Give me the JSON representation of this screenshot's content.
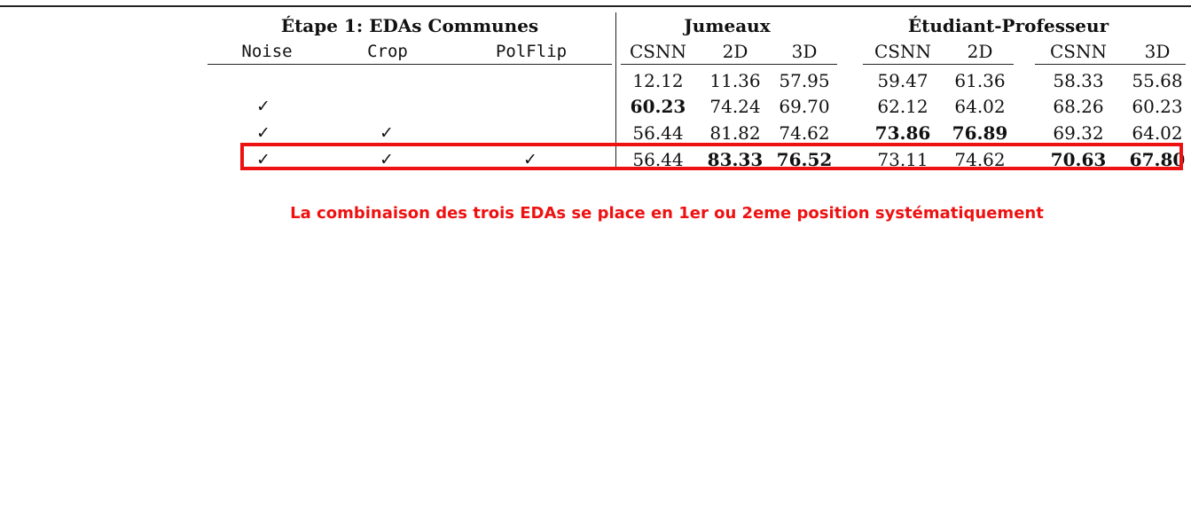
{
  "table": {
    "group_headers": {
      "step1": "Étape 1: EDAs Communes",
      "twins": "Jumeaux",
      "student_teacher": "Étudiant-Professeur"
    },
    "columns": {
      "noise": "Noise",
      "crop": "Crop",
      "polflip": "PolFlip",
      "twins_csnn": "CSNN",
      "twins_2d": "2D",
      "twins_3d": "3D",
      "st_csnn": "CSNN",
      "st_2d": "2D",
      "st_csnn2": "CSNN",
      "st_3d": "3D"
    },
    "checkmark": "✓",
    "rows": [
      {
        "noise": false,
        "crop": false,
        "polflip": false,
        "values": [
          "12.12",
          "11.36",
          "57.95",
          "59.47",
          "61.36",
          "58.33",
          "55.68"
        ],
        "bold": [
          false,
          false,
          false,
          false,
          false,
          false,
          false
        ]
      },
      {
        "noise": true,
        "crop": false,
        "polflip": false,
        "values": [
          "60.23",
          "74.24",
          "69.70",
          "62.12",
          "64.02",
          "68.26",
          "60.23"
        ],
        "bold": [
          true,
          false,
          false,
          false,
          false,
          false,
          false
        ]
      },
      {
        "noise": true,
        "crop": true,
        "polflip": false,
        "values": [
          "56.44",
          "81.82",
          "74.62",
          "73.86",
          "76.89",
          "69.32",
          "64.02"
        ],
        "bold": [
          false,
          false,
          false,
          true,
          true,
          false,
          false
        ]
      },
      {
        "noise": true,
        "crop": true,
        "polflip": true,
        "values": [
          "56.44",
          "83.33",
          "76.52",
          "73.11",
          "74.62",
          "70.63",
          "67.80"
        ],
        "bold": [
          false,
          true,
          true,
          false,
          false,
          true,
          true
        ]
      }
    ]
  },
  "annotation": {
    "text": "La combinaison des trois EDAs se place en 1er ou 2eme position systématiquement",
    "color": "#ee1111"
  }
}
